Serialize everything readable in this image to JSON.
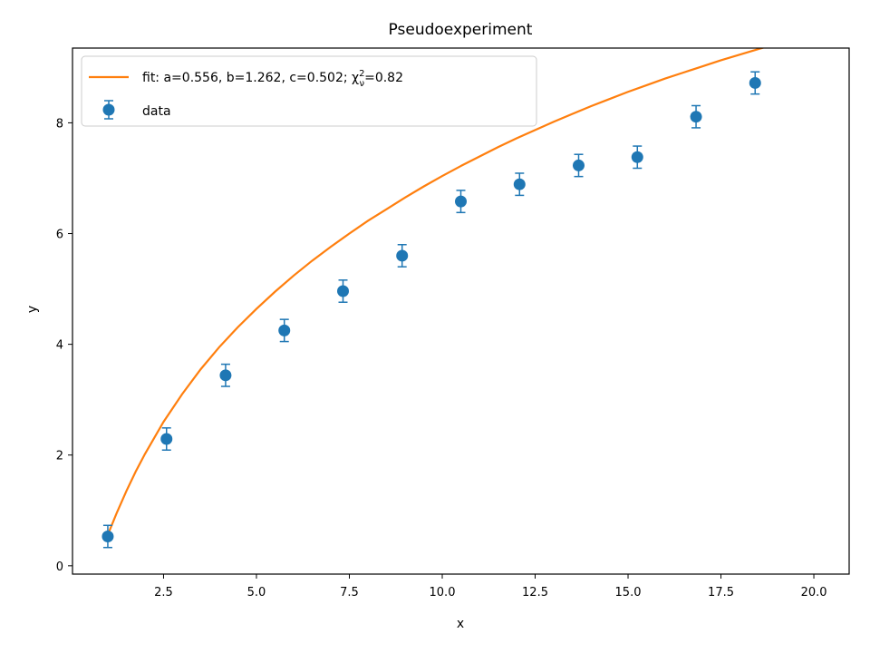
{
  "chart_data": {
    "type": "scatter",
    "title": "Pseudoexperiment",
    "xlabel": "x",
    "ylabel": "y",
    "xlim": [
      0.05,
      20.95
    ],
    "ylim": [
      -0.15,
      9.35
    ],
    "xticks": [
      2.5,
      5.0,
      7.5,
      10.0,
      12.5,
      15.0,
      17.5,
      20.0
    ],
    "xtick_labels": [
      "2.5",
      "5.0",
      "7.5",
      "10.0",
      "12.5",
      "15.0",
      "17.5",
      "20.0"
    ],
    "yticks": [
      0,
      2,
      4,
      6,
      8
    ],
    "ytick_labels": [
      "0",
      "2",
      "4",
      "6",
      "8"
    ],
    "grid": false,
    "legend_position": "top-left",
    "series": [
      {
        "name": "fit: a=0.556, b=1.262, c=0.502; χ",
        "name_sup": "2",
        "name_sub": "ν",
        "name_suffix": "=0.82",
        "kind": "line",
        "color": "#ff7f0e",
        "x": [
          1.0,
          1.25,
          1.5,
          1.75,
          2.0,
          2.5,
          3.0,
          3.5,
          4.0,
          4.5,
          5.0,
          5.5,
          6.0,
          6.5,
          7.0,
          7.5,
          8.0,
          8.5,
          9.0,
          9.5,
          10.0,
          10.5,
          11.0,
          11.5,
          12.0,
          12.5,
          13.0,
          13.5,
          14.0,
          14.5,
          15.0,
          15.5,
          16.0,
          16.5,
          17.0,
          17.5,
          18.0,
          18.5,
          19.0,
          19.5,
          20.0
        ],
        "y": [
          0.56,
          0.97,
          1.35,
          1.7,
          2.02,
          2.6,
          3.1,
          3.55,
          3.95,
          4.31,
          4.64,
          4.95,
          5.24,
          5.51,
          5.76,
          6.0,
          6.23,
          6.44,
          6.65,
          6.85,
          7.04,
          7.22,
          7.39,
          7.56,
          7.72,
          7.87,
          8.02,
          8.16,
          8.3,
          8.43,
          8.56,
          8.68,
          8.8,
          8.91,
          9.02,
          9.13,
          9.23,
          9.33,
          9.43,
          9.52,
          9.61
        ]
      },
      {
        "name": "data",
        "kind": "errorbar",
        "color": "#1f77b4",
        "x": [
          1.0,
          2.58,
          4.17,
          5.75,
          7.33,
          8.92,
          10.5,
          12.08,
          13.67,
          15.25,
          16.83,
          18.42
        ],
        "y": [
          0.53,
          2.29,
          3.44,
          4.25,
          4.96,
          5.6,
          6.58,
          6.89,
          7.23,
          7.38,
          8.11,
          8.72
        ],
        "yerr": [
          0.2,
          0.2,
          0.2,
          0.2,
          0.2,
          0.2,
          0.2,
          0.2,
          0.2,
          0.2,
          0.2,
          0.2
        ]
      }
    ]
  }
}
